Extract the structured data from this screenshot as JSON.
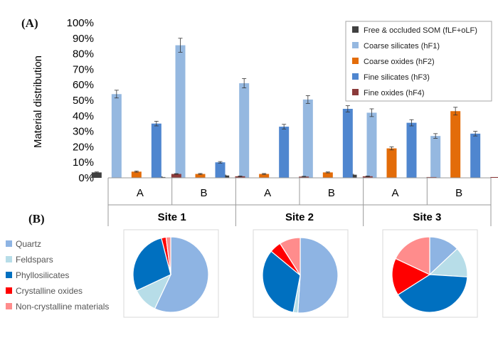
{
  "figure": {
    "panel_a_label": "(A)",
    "panel_b_label": "(B)"
  },
  "chart_data": [
    {
      "type": "bar",
      "title": "",
      "ylabel": "Material distribution",
      "xlabel": "",
      "ylim": [
        0,
        100
      ],
      "yticks": [
        "0%",
        "10%",
        "20%",
        "30%",
        "40%",
        "50%",
        "60%",
        "70%",
        "80%",
        "90%",
        "100%"
      ],
      "categories": [
        "A",
        "B",
        "A",
        "B",
        "A",
        "B"
      ],
      "sites": [
        "Site 1",
        "Site 2",
        "Site 3"
      ],
      "legend_position": "top-right",
      "series": [
        {
          "name": "Free & occluded SOM (fLF+oLF)",
          "color": "#404040",
          "values": [
            3.5,
            0.5,
            1.5,
            0.2,
            2.0,
            0.2
          ],
          "errors": [
            0.3,
            0.2,
            0.3,
            0.1,
            0.3,
            0.1
          ]
        },
        {
          "name": "Coarse silicates (hF1)",
          "color": "#95b8e0",
          "values": [
            54,
            85.5,
            61,
            50.5,
            42,
            27
          ],
          "errors": [
            2.5,
            4.5,
            3.0,
            2.5,
            2.5,
            1.5
          ]
        },
        {
          "name": "Coarse oxides (hF2)",
          "color": "#e36c09",
          "values": [
            4,
            2.5,
            2.5,
            3.5,
            19,
            43
          ],
          "errors": [
            0.4,
            0.3,
            0.3,
            0.3,
            1.0,
            2.5
          ]
        },
        {
          "name": "Fine silicates (hF3)",
          "color": "#4f86cf",
          "values": [
            35,
            10,
            33,
            44.5,
            35.5,
            28.5
          ],
          "errors": [
            1.5,
            0.5,
            1.5,
            2.0,
            2.0,
            1.5
          ]
        },
        {
          "name": "Fine oxides (hF4)",
          "color": "#8b3a3a",
          "values": [
            2.5,
            1,
            0.8,
            1,
            0.5,
            0.5
          ],
          "errors": [
            0.2,
            0.2,
            0.2,
            0.2,
            0.1,
            0.1
          ]
        }
      ]
    },
    {
      "type": "pie",
      "legend_position": "left",
      "categories": [
        "Quartz",
        "Feldspars",
        "Phyllosilicates",
        "Crystalline oxides",
        "Non-crystalline materials"
      ],
      "colors": [
        "#8eb4e3",
        "#b7dde8",
        "#0070c0",
        "#ff0000",
        "#ff8c8c"
      ],
      "pies": [
        {
          "site": "Site 1",
          "values": [
            57,
            11,
            28,
            2,
            2
          ]
        },
        {
          "site": "Site 2",
          "values": [
            51,
            2,
            33,
            5,
            9
          ]
        },
        {
          "site": "Site 3",
          "values": [
            13,
            13,
            40,
            16,
            18
          ]
        }
      ]
    }
  ]
}
